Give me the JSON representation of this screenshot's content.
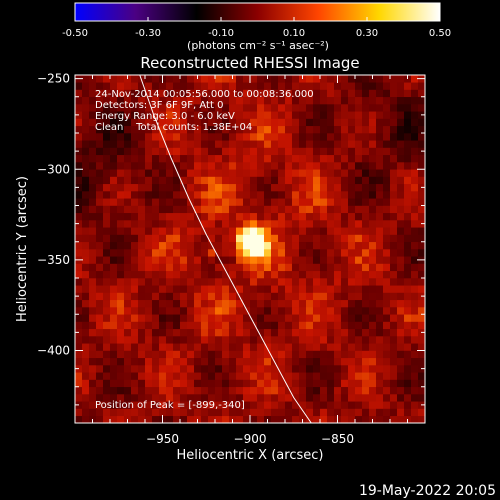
{
  "colorbar": {
    "ticks": [
      "-0.50",
      "-0.30",
      "-0.10",
      "0.10",
      "0.30",
      "0.50"
    ],
    "tick_values": [
      -0.5,
      -0.3,
      -0.1,
      0.1,
      0.3,
      0.5
    ],
    "range": [
      -0.5,
      0.5
    ],
    "unit_label": "(photons cm⁻² s⁻¹ asec⁻²)",
    "colors": [
      "#0000ff",
      "#4b0082",
      "#000000",
      "#8b0000",
      "#ff4500",
      "#ffd700",
      "#ffffff"
    ]
  },
  "chart_data": {
    "type": "heatmap",
    "title": "Reconstructed RHESSI Image",
    "xlabel": "Heliocentric X (arcsec)",
    "ylabel": "Heliocentric Y (arcsec)",
    "xlim": [
      -1000,
      -800
    ],
    "ylim": [
      -440,
      -248
    ],
    "xticks": [
      -950,
      -900,
      -850
    ],
    "yticks": [
      -250,
      -300,
      -350,
      -400
    ],
    "xtick_labels": [
      "−950",
      "−900",
      "−850"
    ],
    "ytick_labels": [
      "−250",
      "−300",
      "−350",
      "−400"
    ],
    "info_lines": [
      "24-Nov-2014 00:05:56.000 to 00:08:36.000",
      "Detectors: 3F 6F 9F, Att 0",
      "Energy Range: 3.0 - 6.0 keV",
      "Clean    Total counts: 1.38E+04"
    ],
    "peak_label": "Position of Peak = [-899,-340]",
    "peak": {
      "x": -899,
      "y": -340
    },
    "secondary_source": {
      "x": -922,
      "y": -345
    },
    "limb_curve": {
      "x": [
        -963,
        -955,
        -945,
        -935,
        -925,
        -915,
        -905,
        -895,
        -885,
        -875,
        -865
      ],
      "y": [
        -248,
        -270,
        -294,
        -316,
        -336,
        -354,
        -372,
        -390,
        -408,
        -426,
        -440
      ]
    }
  },
  "timestamp": "19-May-2022 20:05"
}
